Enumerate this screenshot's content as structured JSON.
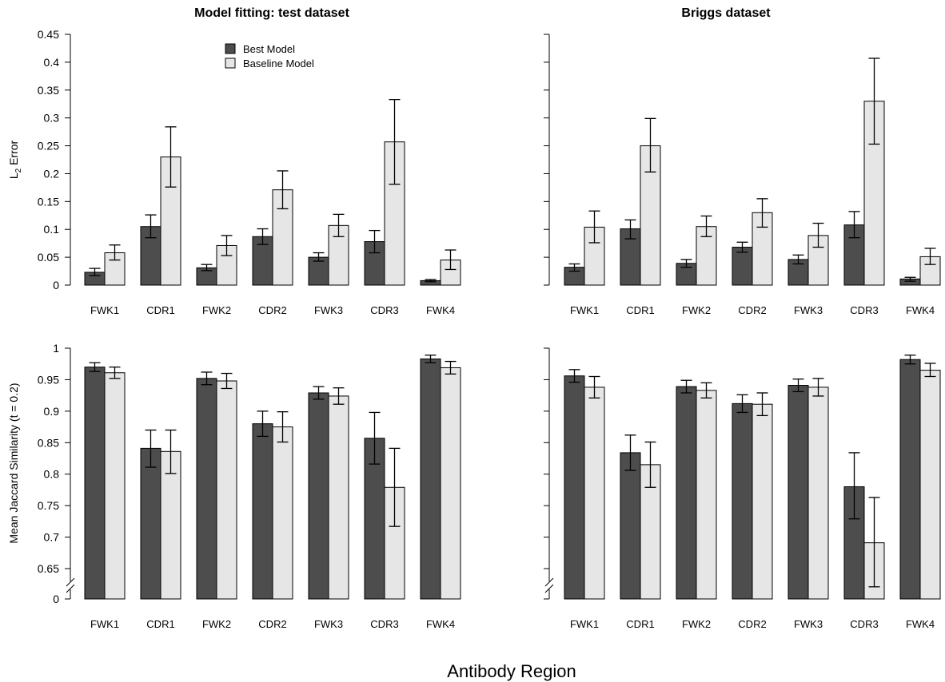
{
  "x_axis_label": "Antibody Region",
  "colors": {
    "best": "#4d4d4d",
    "baseline": "#e6e6e6",
    "stroke": "#000000"
  },
  "chart_data": [
    {
      "id": "l2_test",
      "type": "bar",
      "title": "Model fitting: test dataset",
      "ylabel": "L2 Error",
      "ylabel_main": "L",
      "ylabel_sub": "2",
      "ylabel_rest": " Error",
      "ylim": [
        0,
        0.45
      ],
      "yticks": [
        "0",
        "0.05",
        "0.1",
        "0.15",
        "0.2",
        "0.25",
        "0.3",
        "0.35",
        "0.4",
        "0.45"
      ],
      "ytick_values": [
        0,
        0.05,
        0.1,
        0.15,
        0.2,
        0.25,
        0.3,
        0.35,
        0.4,
        0.45
      ],
      "axis_break": false,
      "legend": [
        "Best Model",
        "Baseline Model"
      ],
      "categories": [
        "FWK1",
        "CDR1",
        "FWK2",
        "CDR2",
        "FWK3",
        "CDR3",
        "FWK4"
      ],
      "series": [
        {
          "name": "Best Model",
          "values": [
            0.023,
            0.105,
            0.031,
            0.087,
            0.05,
            0.078,
            0.008
          ],
          "err_low": [
            0.017,
            0.085,
            0.026,
            0.073,
            0.043,
            0.058,
            0.006
          ],
          "err_high": [
            0.03,
            0.126,
            0.037,
            0.101,
            0.058,
            0.098,
            0.01
          ]
        },
        {
          "name": "Baseline Model",
          "values": [
            0.058,
            0.23,
            0.071,
            0.171,
            0.107,
            0.257,
            0.045
          ],
          "err_low": [
            0.045,
            0.176,
            0.053,
            0.137,
            0.087,
            0.181,
            0.028
          ],
          "err_high": [
            0.072,
            0.284,
            0.089,
            0.205,
            0.127,
            0.333,
            0.063
          ]
        }
      ]
    },
    {
      "id": "l2_briggs",
      "type": "bar",
      "title": "Briggs dataset",
      "ylabel": "",
      "ylim": [
        0,
        0.45
      ],
      "yticks": [],
      "ytick_values": [
        0,
        0.05,
        0.1,
        0.15,
        0.2,
        0.25,
        0.3,
        0.35,
        0.4,
        0.45
      ],
      "axis_break": false,
      "legend": [],
      "categories": [
        "FWK1",
        "CDR1",
        "FWK2",
        "CDR2",
        "FWK3",
        "CDR3",
        "FWK4"
      ],
      "series": [
        {
          "name": "Best Model",
          "values": [
            0.032,
            0.101,
            0.039,
            0.068,
            0.046,
            0.108,
            0.011
          ],
          "err_low": [
            0.025,
            0.083,
            0.032,
            0.059,
            0.038,
            0.085,
            0.007
          ],
          "err_high": [
            0.038,
            0.117,
            0.046,
            0.077,
            0.054,
            0.132,
            0.014
          ]
        },
        {
          "name": "Baseline Model",
          "values": [
            0.104,
            0.25,
            0.105,
            0.13,
            0.089,
            0.33,
            0.051
          ],
          "err_low": [
            0.076,
            0.203,
            0.087,
            0.104,
            0.068,
            0.253,
            0.037
          ],
          "err_high": [
            0.133,
            0.299,
            0.124,
            0.155,
            0.111,
            0.407,
            0.066
          ]
        }
      ]
    },
    {
      "id": "jac_test",
      "type": "bar",
      "title": "",
      "ylabel": "Mean Jaccard Similarity (t = 0.2)",
      "ylim": [
        0.6,
        1.0
      ],
      "yticks": [
        "0",
        "0.65",
        "0.7",
        "0.75",
        "0.8",
        "0.85",
        "0.9",
        "0.95",
        "1"
      ],
      "ytick_values": [
        0.6,
        0.65,
        0.7,
        0.75,
        0.8,
        0.85,
        0.9,
        0.95,
        1.0
      ],
      "axis_break": true,
      "legend": [],
      "categories": [
        "FWK1",
        "CDR1",
        "FWK2",
        "CDR2",
        "FWK3",
        "CDR3",
        "FWK4"
      ],
      "series": [
        {
          "name": "Best Model",
          "values": [
            0.97,
            0.841,
            0.952,
            0.88,
            0.929,
            0.857,
            0.983
          ],
          "err_low": [
            0.963,
            0.811,
            0.942,
            0.86,
            0.919,
            0.816,
            0.977
          ],
          "err_high": [
            0.977,
            0.87,
            0.962,
            0.9,
            0.939,
            0.898,
            0.989
          ]
        },
        {
          "name": "Baseline Model",
          "values": [
            0.961,
            0.836,
            0.948,
            0.875,
            0.924,
            0.779,
            0.969
          ],
          "err_low": [
            0.952,
            0.801,
            0.936,
            0.851,
            0.911,
            0.717,
            0.959
          ],
          "err_high": [
            0.97,
            0.87,
            0.96,
            0.899,
            0.937,
            0.841,
            0.979
          ]
        }
      ]
    },
    {
      "id": "jac_briggs",
      "type": "bar",
      "title": "",
      "ylabel": "",
      "ylim": [
        0.6,
        1.0
      ],
      "yticks": [],
      "ytick_values": [
        0.6,
        0.65,
        0.7,
        0.75,
        0.8,
        0.85,
        0.9,
        0.95,
        1.0
      ],
      "axis_break": true,
      "legend": [],
      "categories": [
        "FWK1",
        "CDR1",
        "FWK2",
        "CDR2",
        "FWK3",
        "CDR3",
        "FWK4"
      ],
      "series": [
        {
          "name": "Best Model",
          "values": [
            0.956,
            0.834,
            0.939,
            0.912,
            0.941,
            0.78,
            0.982
          ],
          "err_low": [
            0.946,
            0.806,
            0.929,
            0.898,
            0.931,
            0.729,
            0.975
          ],
          "err_high": [
            0.966,
            0.862,
            0.949,
            0.926,
            0.951,
            0.834,
            0.989
          ]
        },
        {
          "name": "Baseline Model",
          "values": [
            0.938,
            0.815,
            0.933,
            0.911,
            0.938,
            0.691,
            0.965
          ],
          "err_low": [
            0.921,
            0.779,
            0.921,
            0.893,
            0.924,
            0.62,
            0.955
          ],
          "err_high": [
            0.955,
            0.851,
            0.945,
            0.929,
            0.952,
            0.763,
            0.976
          ]
        }
      ]
    }
  ]
}
